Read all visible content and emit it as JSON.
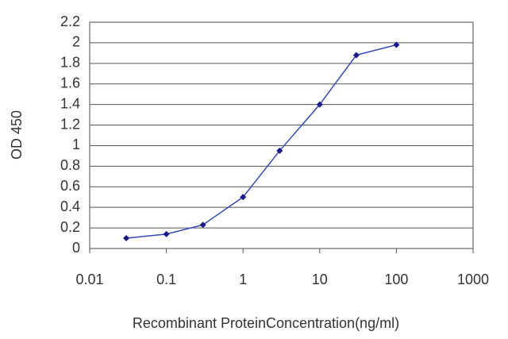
{
  "chart_data": {
    "type": "line",
    "xscale": "log",
    "x_label": "Recombinant ProteinConcentration(ng/ml)",
    "y_label": "OD 450",
    "x": [
      0.03,
      0.1,
      0.3,
      1,
      3,
      10,
      30,
      100
    ],
    "series": [
      {
        "name": "OD 450",
        "color": "#1a1a8c",
        "line_color": "#3348c0",
        "values": [
          0.1,
          0.14,
          0.23,
          0.5,
          0.95,
          1.4,
          1.88,
          1.98
        ]
      }
    ],
    "xlim": [
      0.01,
      1000
    ],
    "xticks": [
      0.01,
      0.1,
      1,
      10,
      100,
      1000
    ],
    "ylim": [
      0,
      2.2
    ],
    "yticks": [
      0,
      0.2,
      0.4,
      0.6,
      0.8,
      1,
      1.2,
      1.4,
      1.6,
      1.8,
      2,
      2.2
    ],
    "grid": true
  }
}
